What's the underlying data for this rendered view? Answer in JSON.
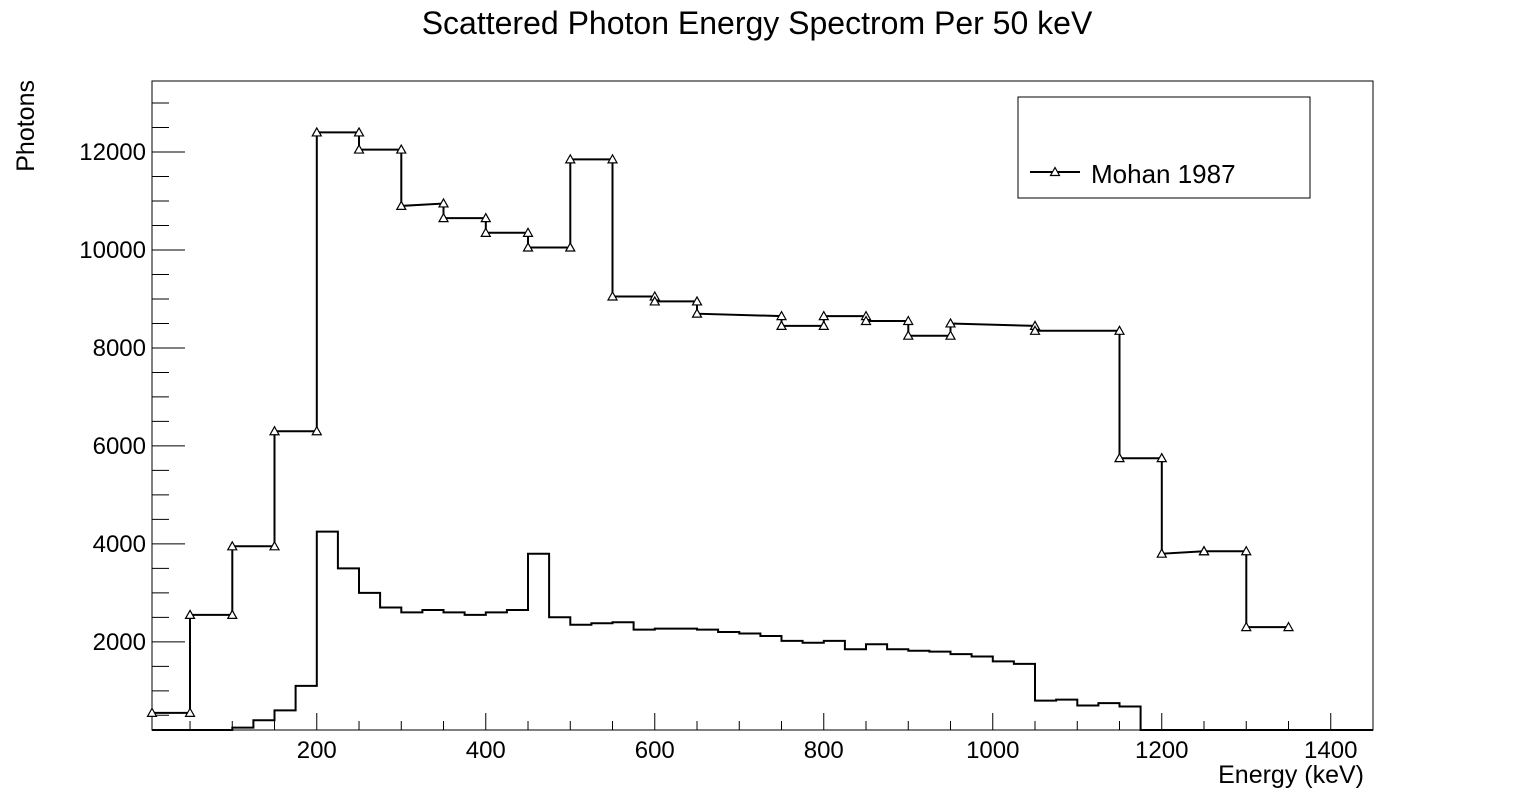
{
  "chart_data": {
    "type": "line",
    "title": "Scattered Photon Energy Spectrom Per 50 keV",
    "xlabel": "Energy (keV)",
    "ylabel": "Photons",
    "xlim": [
      0,
      1450
    ],
    "ylim": [
      200,
      13500
    ],
    "grid": false,
    "legend": {
      "placement": "top-right",
      "entries": [
        "Mohan 1987"
      ]
    },
    "x_ticks": [
      200,
      400,
      600,
      800,
      1000,
      1200,
      1400
    ],
    "y_ticks": [
      2000,
      4000,
      6000,
      8000,
      10000,
      12000
    ],
    "series": [
      {
        "name": "Mohan 1987",
        "style": "step-with-triangle-markers",
        "x": [
          0,
          50,
          50,
          100,
          100,
          150,
          150,
          200,
          200,
          250,
          250,
          300,
          300,
          350,
          350,
          400,
          400,
          450,
          450,
          500,
          500,
          550,
          550,
          600,
          600,
          650,
          650,
          750,
          750,
          800,
          800,
          850,
          850,
          900,
          900,
          950,
          950,
          1050,
          1050,
          1150,
          1150,
          1200,
          1200,
          1250,
          1250,
          1300,
          1300,
          1350
        ],
        "y": [
          550,
          550,
          2550,
          2550,
          3950,
          3950,
          6300,
          6300,
          12400,
          12400,
          12050,
          12050,
          10900,
          10950,
          10650,
          10650,
          10350,
          10350,
          10050,
          10050,
          11850,
          11850,
          9050,
          9050,
          8950,
          8950,
          8700,
          8650,
          8450,
          8450,
          8650,
          8650,
          8550,
          8550,
          8250,
          8250,
          8500,
          8450,
          8350,
          8350,
          5750,
          5750,
          3800,
          3850,
          3850,
          3850,
          2300,
          2300
        ]
      },
      {
        "style": "step-histogram",
        "bin_edges": [
          0,
          25,
          50,
          75,
          100,
          125,
          150,
          175,
          200,
          225,
          250,
          275,
          300,
          325,
          350,
          375,
          400,
          425,
          450,
          475,
          500,
          525,
          550,
          575,
          600,
          625,
          650,
          675,
          700,
          725,
          750,
          775,
          800,
          825,
          850,
          875,
          900,
          925,
          950,
          975,
          1000,
          1025,
          1050,
          1075,
          1100,
          1125,
          1150,
          1175,
          1200,
          1225,
          1250,
          1275,
          1300,
          1325,
          1350,
          1375,
          1400,
          1425,
          1450
        ],
        "values": [
          200,
          200,
          200,
          200,
          250,
          400,
          600,
          1100,
          4250,
          3500,
          3000,
          2700,
          2600,
          2650,
          2600,
          2550,
          2600,
          2650,
          3800,
          2500,
          2350,
          2380,
          2400,
          2250,
          2270,
          2270,
          2250,
          2200,
          2170,
          2120,
          2020,
          1980,
          2020,
          1850,
          1950,
          1850,
          1820,
          1800,
          1750,
          1700,
          1600,
          1550,
          800,
          820,
          700,
          750,
          680,
          200,
          200,
          200,
          200,
          200,
          200,
          200,
          200,
          200,
          200,
          200
        ]
      }
    ]
  }
}
